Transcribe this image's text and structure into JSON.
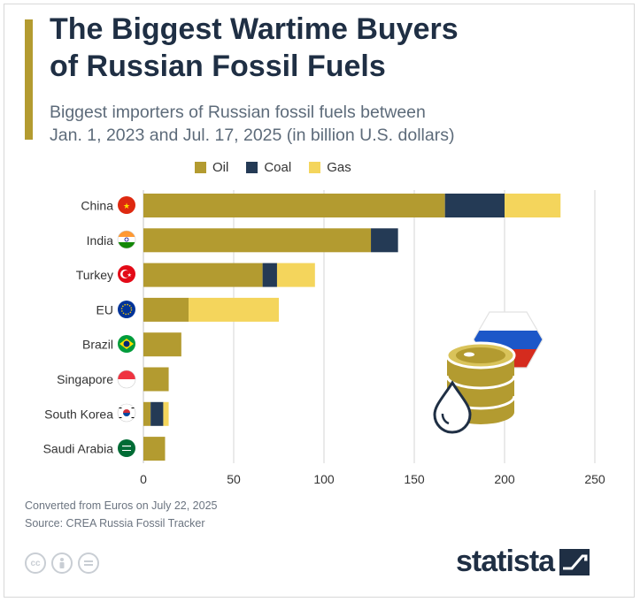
{
  "header": {
    "title_line1": "The Biggest Wartime Buyers",
    "title_line2": "of Russian Fossil Fuels",
    "subtitle_line1": "Biggest importers of Russian fossil fuels between",
    "subtitle_line2": "Jan. 1, 2023 and Jul. 17, 2025 (in billion U.S. dollars)"
  },
  "colors": {
    "oil": "#b39b30",
    "coal": "#243a55",
    "gas": "#f4d55c",
    "grid": "#d6d6d6",
    "text": "#333333"
  },
  "chart_data": {
    "type": "bar",
    "orientation": "horizontal",
    "stacked": true,
    "categories": [
      "China",
      "India",
      "Turkey",
      "EU",
      "Brazil",
      "Singapore",
      "South Korea",
      "Saudi Arabia"
    ],
    "series": [
      {
        "name": "Oil",
        "values": [
          167,
          126,
          66,
          25,
          21,
          14,
          4,
          12
        ]
      },
      {
        "name": "Coal",
        "values": [
          33,
          15,
          8,
          0,
          0,
          0,
          7,
          0
        ]
      },
      {
        "name": "Gas",
        "values": [
          31,
          0,
          21,
          50,
          0,
          0,
          3,
          0
        ]
      }
    ],
    "xlim": [
      0,
      250
    ],
    "xticks": [
      "0",
      "50",
      "100",
      "150",
      "200",
      "250"
    ],
    "legend": [
      "Oil",
      "Coal",
      "Gas"
    ],
    "legend_position": "top",
    "grid": true
  },
  "footer": {
    "note": "Converted from Euros on July 22, 2025",
    "source": "Source: CREA Russia Fossil Tracker",
    "brand": "statista"
  }
}
